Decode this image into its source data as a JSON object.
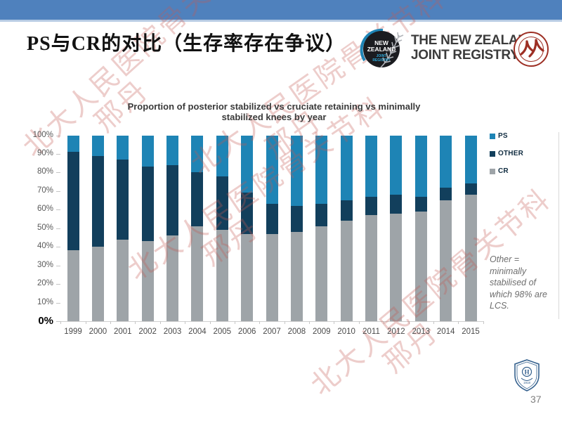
{
  "slide": {
    "page_number": "37"
  },
  "header": {
    "title": "PS与CR的对比（生存率存在争议）",
    "accent_color": "#4F81BD",
    "accent_line_color": "#B8CCE4",
    "registry_wordmark_line1": "THE NEW ZEALAND",
    "registry_wordmark_line2": "JOINT REGISTRY",
    "nz_logo": {
      "line1": "NEW",
      "line2": "ZEALAND",
      "line3": "JOINT",
      "line4": "REGISTRY"
    }
  },
  "watermark": {
    "line1": "北大人民医院骨关节科",
    "line2": "邢丹",
    "color": "rgba(196,88,82,0.30)"
  },
  "chart_data": {
    "type": "bar",
    "stacked": true,
    "title": "Proportion of posterior stabilized vs cruciate retaining vs minimally stabilized knees by year",
    "title_line1": "Proportion of posterior stabilized vs cruciate retaining vs minimally",
    "title_line2": "stabilized knees by year",
    "categories": [
      "1999",
      "2000",
      "2001",
      "2002",
      "2003",
      "2004",
      "2005",
      "2006",
      "2007",
      "2008",
      "2009",
      "2010",
      "2011",
      "2012",
      "2013",
      "2014",
      "2015"
    ],
    "series": [
      {
        "name": "PS",
        "color": "#1E84B5",
        "values": [
          9,
          11,
          13,
          17,
          16,
          20,
          22,
          31,
          37,
          38,
          37,
          35,
          33,
          32,
          33,
          28,
          26
        ]
      },
      {
        "name": "OTHER",
        "color": "#123F5C",
        "values": [
          53,
          49,
          43,
          40,
          38,
          29,
          29,
          22,
          16,
          14,
          12,
          11,
          10,
          10,
          8,
          7,
          6
        ]
      },
      {
        "name": "CR",
        "color": "#9EA4A8",
        "values": [
          38,
          40,
          44,
          43,
          46,
          51,
          49,
          47,
          47,
          48,
          51,
          54,
          57,
          58,
          59,
          65,
          68
        ]
      }
    ],
    "ylim": [
      0,
      100
    ],
    "y_tick_labels": [
      "100%",
      "90%",
      "80%",
      "70%",
      "60%",
      "50%",
      "40%",
      "30%",
      "20%",
      "10%",
      "0%"
    ],
    "grid": false,
    "legend_position": "right",
    "annotation": "Other = minimally stabilised of which 98% are LCS."
  },
  "footer_logo": {
    "monogram": "H",
    "year": "1918"
  }
}
